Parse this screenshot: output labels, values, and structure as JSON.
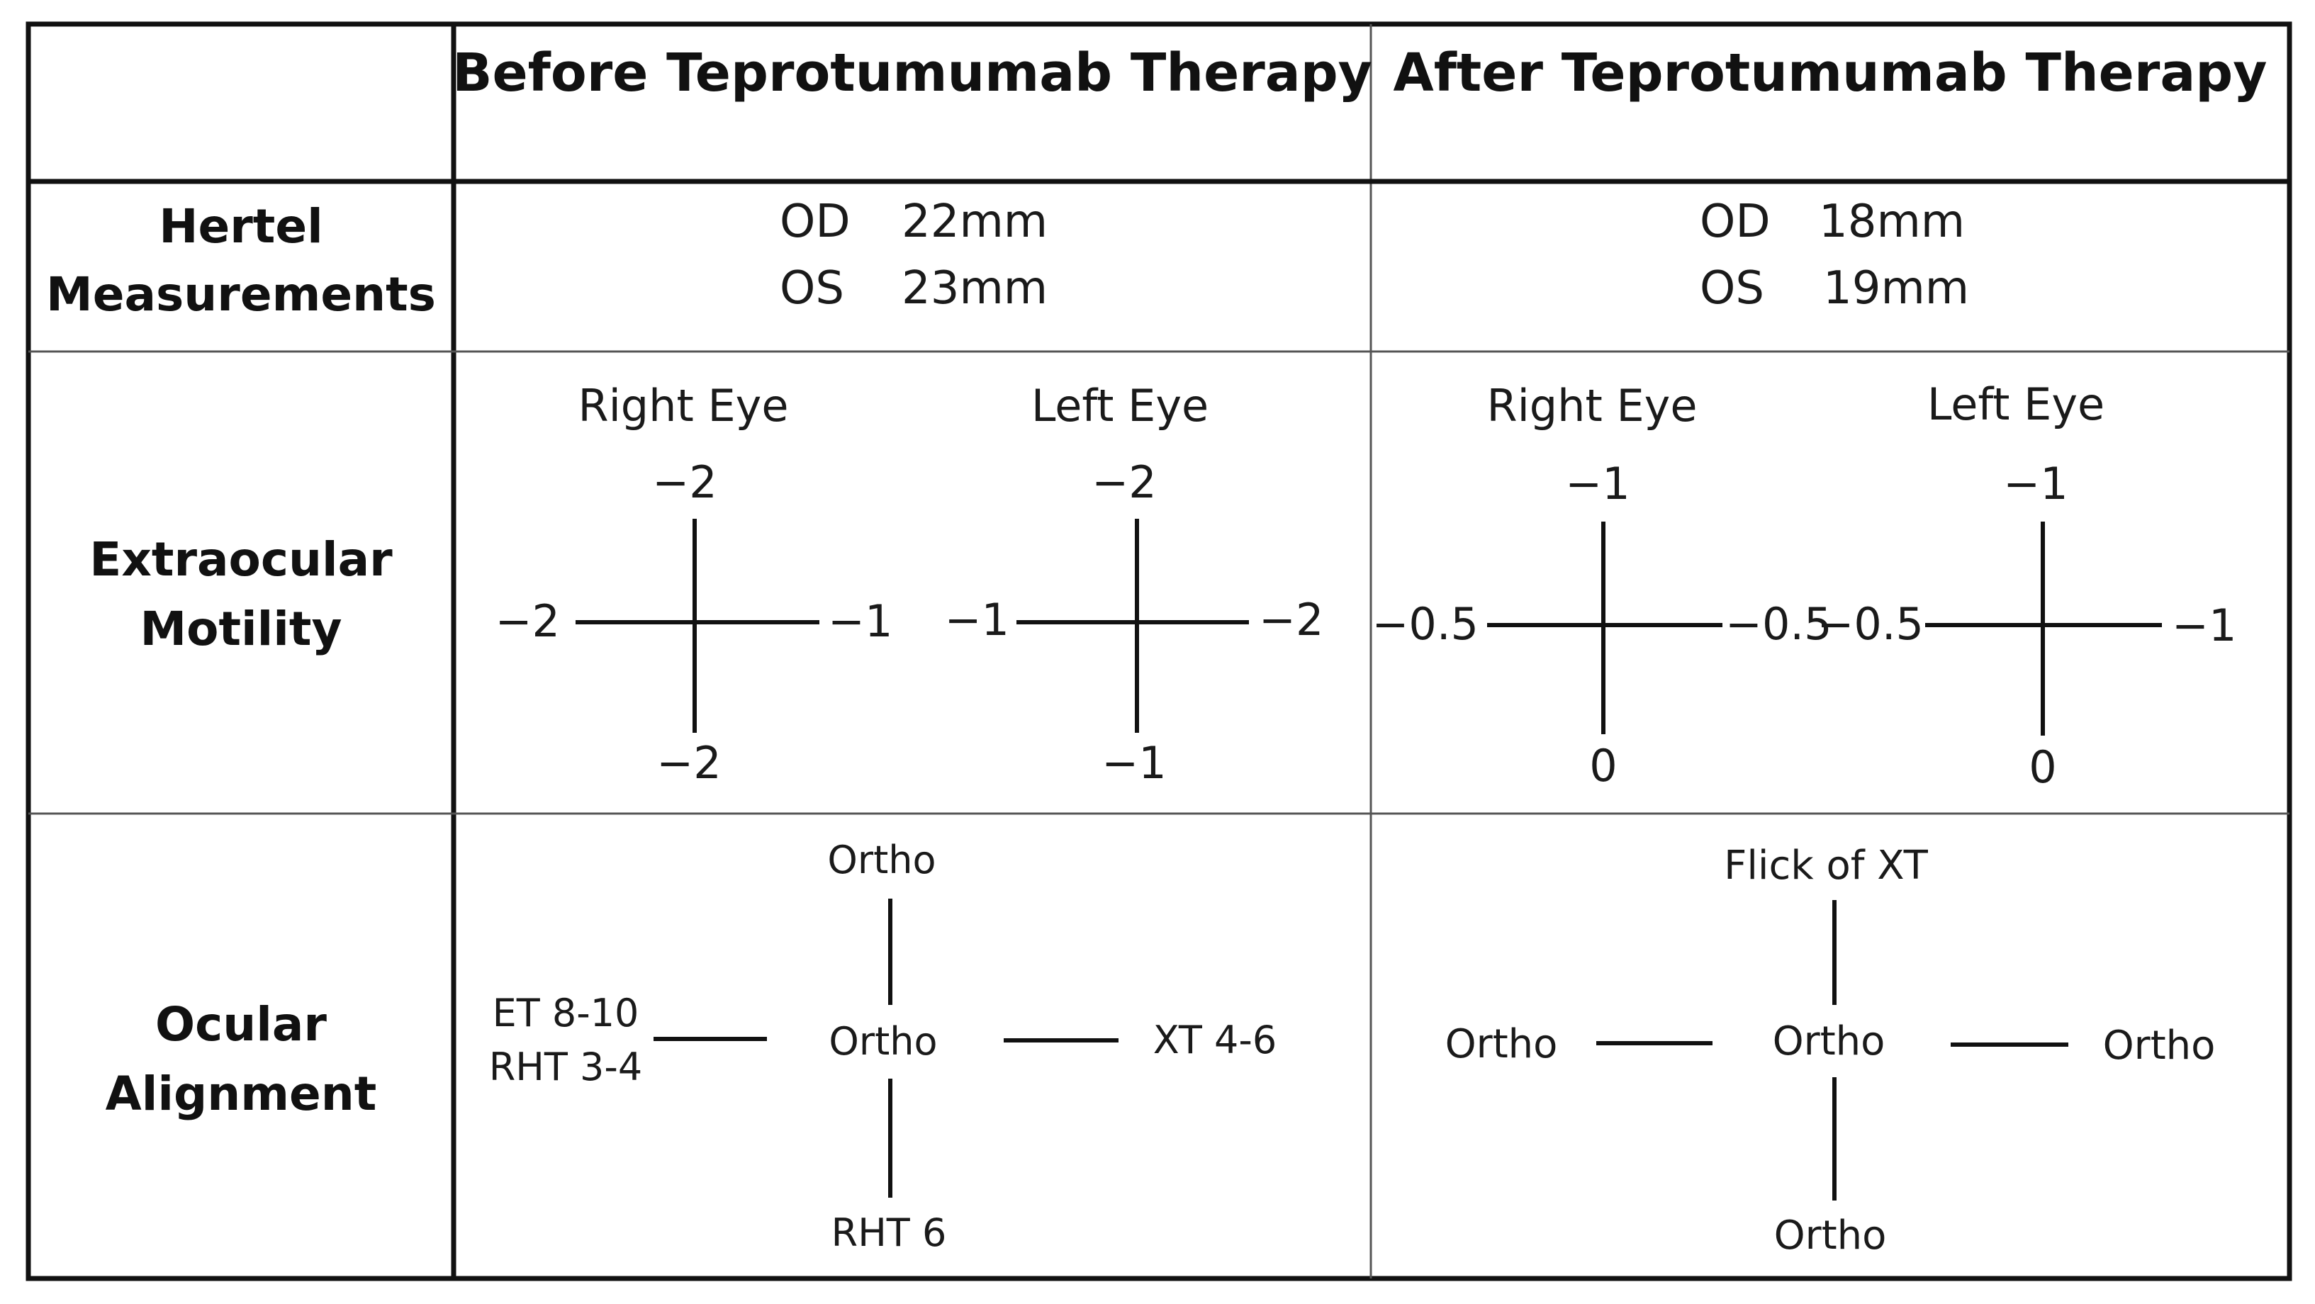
{
  "table": {
    "columns": {
      "corner": "",
      "before": "Before Teprotumumab Therapy",
      "after": "After Teprotumumab Therapy"
    },
    "rows": {
      "hertel": {
        "line1": "Hertel",
        "line2": "Measurements"
      },
      "motility": {
        "line1": "Extraocular",
        "line2": "Motility"
      },
      "alignment": {
        "line1": "Ocular",
        "line2": "Alignment"
      }
    }
  },
  "hertel": {
    "before": {
      "od": {
        "label": "OD",
        "value": "22mm"
      },
      "os": {
        "label": "OS",
        "value": "23mm"
      }
    },
    "after": {
      "od": {
        "label": "OD",
        "value": "18mm"
      },
      "os": {
        "label": "OS",
        "value": "19mm"
      }
    }
  },
  "motility": {
    "before": {
      "right": {
        "title": "Right Eye",
        "top": "−2",
        "left": "−2",
        "right": "−1",
        "bottom": "−2"
      },
      "left": {
        "title": "Left Eye",
        "top": "−2",
        "left": "−1",
        "right": "−2",
        "bottom": "−1"
      }
    },
    "after": {
      "right": {
        "title": "Right Eye",
        "top": "−1",
        "left": "−0.5",
        "right": "−0.5",
        "bottom": "0"
      },
      "left": {
        "title": "Left Eye",
        "top": "−1",
        "left": "−0.5",
        "right": "−1",
        "bottom": "0"
      }
    }
  },
  "alignment": {
    "before": {
      "up": "Ortho",
      "center": "Ortho",
      "left_line1": "ET 8-10",
      "left_line2": "RHT 3-4",
      "right": "XT 4-6",
      "down": "RHT 6"
    },
    "after": {
      "up": "Flick of XT",
      "center": "Ortho",
      "left": "Ortho",
      "right": "Ortho",
      "down": "Ortho"
    }
  }
}
